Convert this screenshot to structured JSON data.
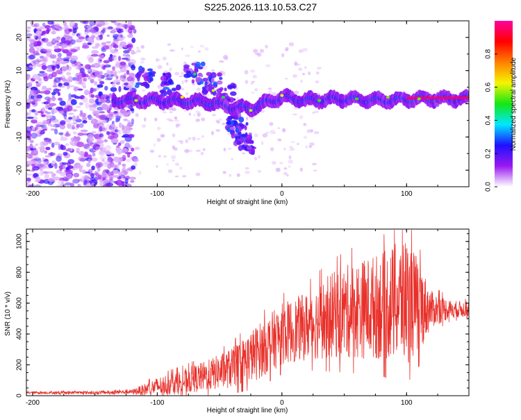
{
  "figure_title": "S225.2026.113.10.53.C27",
  "colors": {
    "snr_line": "#e8302a",
    "axis": "#000000",
    "background": "#ffffff"
  },
  "chart_data": [
    {
      "id": "spectrogram",
      "type": "heatmap",
      "xlabel": "Height of straight line (km)",
      "ylabel": "Frequency (Hz)",
      "xlim": [
        -205,
        150
      ],
      "ylim": [
        -25,
        25
      ],
      "xticks": [
        -200,
        -100,
        0,
        100
      ],
      "xtick_labels": [
        "-200",
        "-100",
        "0",
        "100"
      ],
      "yticks": [
        -20,
        -10,
        0,
        10,
        20
      ],
      "ytick_labels": [
        "-20",
        "-10",
        "0",
        "10",
        "20"
      ],
      "colorbar": {
        "label": "Normalized spectral amplitude",
        "range": [
          0,
          1
        ],
        "ticks": [
          0.0,
          0.2,
          0.4,
          0.6,
          0.8
        ],
        "tick_labels": [
          "0.0",
          "0.2",
          "0.4",
          "0.6",
          "0.8"
        ],
        "colormap": [
          "#ffffff",
          "#9a19f0",
          "#1f10ff",
          "#00e8ff",
          "#15e615",
          "#f5f500",
          "#ff8000",
          "#ff0000",
          "#ff00a0"
        ]
      },
      "features": {
        "noise_region_x": [
          -205,
          -120
        ],
        "signal_band_center_hz": [
          {
            "x": -135,
            "f": 1.0
          },
          {
            "x": -100,
            "f": 1.0
          },
          {
            "x": -60,
            "f": 0.5
          },
          {
            "x": -40,
            "f": -1.0
          },
          {
            "x": -25,
            "f": -1.5
          },
          {
            "x": -15,
            "f": 0.0
          },
          {
            "x": 0,
            "f": 2.0
          },
          {
            "x": 20,
            "f": 1.0
          },
          {
            "x": 50,
            "f": 1.5
          },
          {
            "x": 80,
            "f": 1.0
          },
          {
            "x": 110,
            "f": 1.5
          },
          {
            "x": 150,
            "f": 1.5
          }
        ],
        "scatter_blobs_upper": [
          {
            "x": -110,
            "f": 8
          },
          {
            "x": -90,
            "f": 6
          },
          {
            "x": -70,
            "f": 9
          },
          {
            "x": -55,
            "f": 6
          },
          {
            "x": -45,
            "f": 4
          },
          {
            "x": -38,
            "f": -5
          },
          {
            "x": -33,
            "f": -9
          },
          {
            "x": -30,
            "f": -12
          }
        ]
      }
    },
    {
      "id": "snr",
      "type": "line",
      "xlabel": "Height of straight line (km)",
      "ylabel": "SNR (10 * v/v)",
      "xlim": [
        -205,
        150
      ],
      "ylim": [
        0,
        1080
      ],
      "xticks": [
        -200,
        -100,
        0,
        100
      ],
      "xtick_labels": [
        "-200",
        "-100",
        "0",
        "100"
      ],
      "yticks": [
        0,
        200,
        400,
        600,
        800,
        1000
      ],
      "ytick_labels": [
        "0",
        "200",
        "400",
        "600",
        "800",
        "1000"
      ],
      "envelope": {
        "x": [
          -205,
          -150,
          -120,
          -110,
          -100,
          -80,
          -60,
          -40,
          -20,
          0,
          20,
          40,
          60,
          80,
          90,
          100,
          110,
          120,
          135,
          150
        ],
        "mean": [
          20,
          20,
          25,
          40,
          60,
          90,
          130,
          180,
          280,
          400,
          450,
          520,
          560,
          580,
          600,
          620,
          580,
          560,
          560,
          560
        ],
        "amplitude": [
          8,
          10,
          15,
          40,
          60,
          80,
          100,
          130,
          180,
          200,
          220,
          280,
          320,
          350,
          380,
          420,
          300,
          120,
          60,
          50
        ]
      }
    }
  ]
}
